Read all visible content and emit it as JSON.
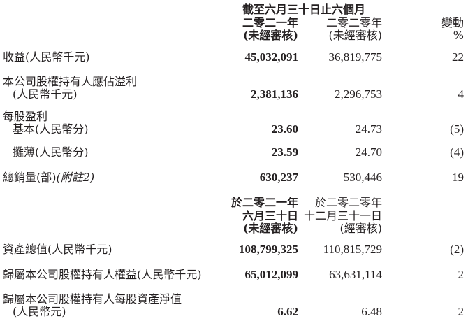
{
  "header1": {
    "period": "截至六月三十日止六個月",
    "col1_year": "二零二一年",
    "col1_note": "(未經審核)",
    "col2_year": "二零二零年",
    "col2_note": "(未經審核)",
    "col3_line1": "變動",
    "col3_line2": "%"
  },
  "rows1": [
    {
      "label": "收益(人民幣千元)",
      "v2021": "45,032,091",
      "v2020": "36,819,775",
      "change": "22"
    },
    {
      "label": "本公司股權持有人應佔溢利",
      "label2": "(人民幣千元)",
      "v2021": "2,381,136",
      "v2020": "2,296,753",
      "change": "4"
    },
    {
      "label": "每股盈利"
    },
    {
      "label": "基本(人民幣分)",
      "v2021": "23.60",
      "v2020": "24.73",
      "change": "(5)"
    },
    {
      "label": "攤薄(人民幣分)",
      "v2021": "23.59",
      "v2020": "24.70",
      "change": "(4)"
    },
    {
      "label": "總銷量(部)",
      "note": "(附註2)",
      "v2021": "630,237",
      "v2020": "530,446",
      "change": "19"
    }
  ],
  "header2": {
    "col1_line1": "於二零二一年",
    "col1_line2": "六月三十日",
    "col1_line3": "(未經審核)",
    "col2_line1": "於二零二零年",
    "col2_line2": "十二月三十一日",
    "col2_line3": "(經審核)"
  },
  "rows2": [
    {
      "label": "資產總值(人民幣千元)",
      "v2021": "108,799,325",
      "v2020": "110,815,729",
      "change": "(2)"
    },
    {
      "label": "歸屬本公司股權持有人權益(人民幣千元)",
      "v2021": "65,012,099",
      "v2020": "63,631,114",
      "change": "2"
    },
    {
      "label": "歸屬本公司股權持有人每股資產淨值",
      "label2": "(人民幣元)",
      "v2021": "6.62",
      "v2020": "6.48",
      "change": "2"
    }
  ]
}
